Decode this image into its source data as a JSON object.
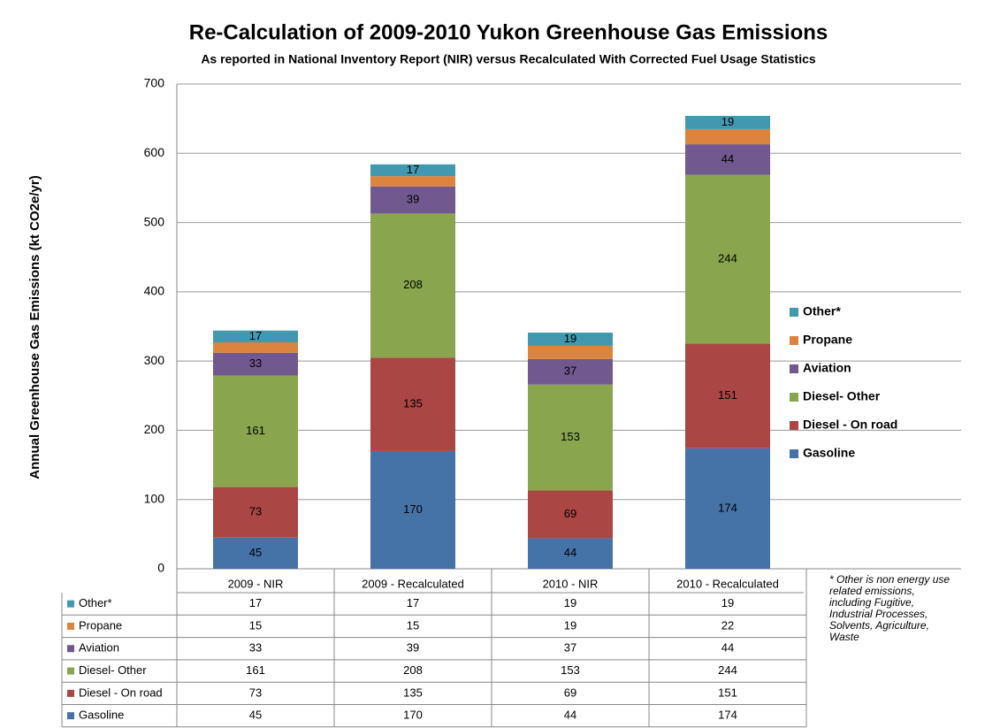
{
  "chart_data": {
    "type": "stacked_bar",
    "title": "Re-Calculation of 2009-2010 Yukon Greenhouse Gas Emissions",
    "subtitle": "As reported in National Inventory Report (NIR) versus Recalculated With Corrected Fuel Usage Statistics",
    "y_label": "Annual Greenhouse Gas Emissions (kt CO2e/yr)",
    "categories": [
      "2009 - NIR",
      "2009 - Recalculated",
      "2010 - NIR",
      "2010 - Recalculated"
    ],
    "series": [
      {
        "name": "Gasoline",
        "color": "#4572a7",
        "values": [
          45,
          170,
          44,
          174
        ],
        "data_labels": true
      },
      {
        "name": "Diesel - On road",
        "color": "#aa4643",
        "values": [
          73,
          135,
          69,
          151
        ],
        "data_labels": true
      },
      {
        "name": "Diesel- Other",
        "color": "#89a54e",
        "values": [
          161,
          208,
          153,
          244
        ],
        "data_labels": true
      },
      {
        "name": "Aviation",
        "color": "#71588f",
        "values": [
          33,
          39,
          37,
          44
        ],
        "data_labels": true
      },
      {
        "name": "Propane",
        "color": "#db843d",
        "values": [
          15,
          15,
          19,
          22
        ],
        "data_labels": false
      },
      {
        "name": "Other*",
        "color": "#4198af",
        "values": [
          17,
          17,
          19,
          19
        ],
        "data_labels": true
      }
    ],
    "ylim": [
      0,
      700
    ],
    "yticks": [
      0,
      100,
      200,
      300,
      400,
      500,
      600,
      700
    ],
    "grid": true,
    "legend": "right",
    "data_table": true,
    "note": "* Other is non energy use related emissions, including Fugitive, Industrial Processes, Solvents, Agriculture, Waste"
  }
}
